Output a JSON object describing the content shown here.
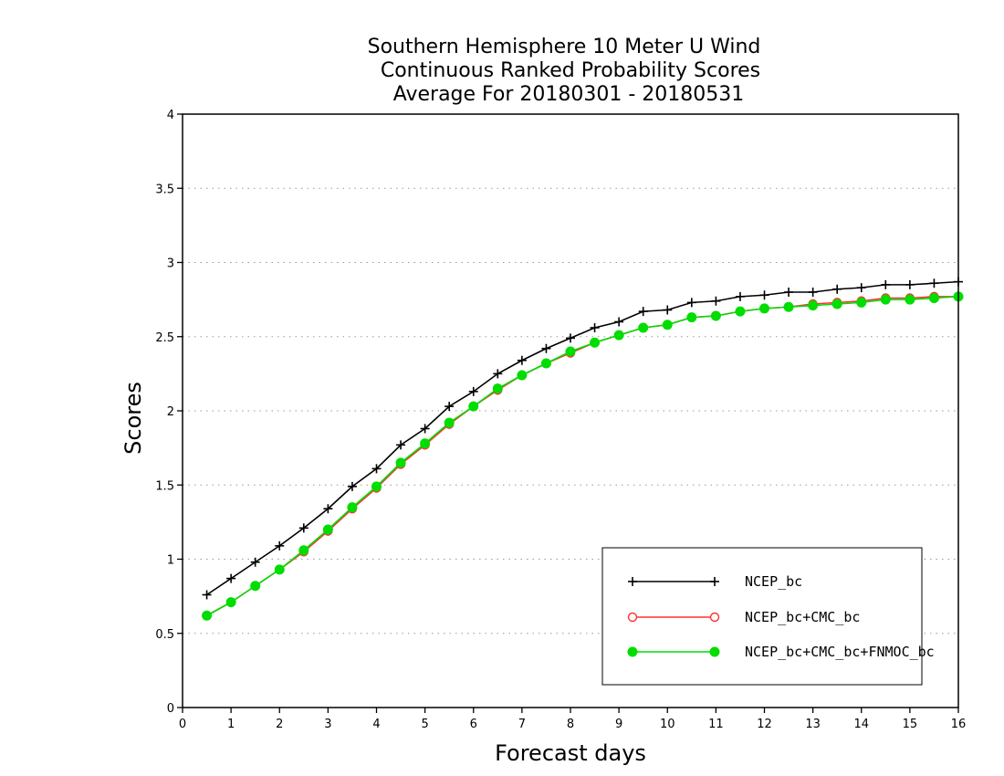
{
  "chart_data": {
    "type": "line",
    "title_lines": [
      "Southern Hemisphere 10 Meter U Wind",
      "Continuous Ranked Probability Scores",
      "Average For 20180301 - 20180531"
    ],
    "xlabel": "Forecast days",
    "ylabel": "Scores",
    "xlim": [
      0,
      16
    ],
    "ylim": [
      0,
      4
    ],
    "x_ticks": [
      "0",
      "1",
      "2",
      "3",
      "4",
      "5",
      "6",
      "7",
      "8",
      "9",
      "10",
      "11",
      "12",
      "13",
      "14",
      "15",
      "16"
    ],
    "y_ticks": [
      "0",
      "0.5",
      "1",
      "1.5",
      "2",
      "2.5",
      "3",
      "3.5",
      "4"
    ],
    "grid": "horizontal dotted",
    "legend_position": "bottom-right",
    "x": [
      0.5,
      1,
      1.5,
      2,
      2.5,
      3,
      3.5,
      4,
      4.5,
      5,
      5.5,
      6,
      6.5,
      7,
      7.5,
      8,
      8.5,
      9,
      9.5,
      10,
      10.5,
      11,
      11.5,
      12,
      12.5,
      13,
      13.5,
      14,
      14.5,
      15,
      15.5,
      16
    ],
    "series": [
      {
        "name": "NCEP_bc",
        "color": "#000000",
        "marker": "plus",
        "values": [
          0.76,
          0.87,
          0.98,
          1.09,
          1.21,
          1.34,
          1.49,
          1.61,
          1.77,
          1.88,
          2.03,
          2.13,
          2.25,
          2.34,
          2.42,
          2.49,
          2.56,
          2.6,
          2.67,
          2.68,
          2.73,
          2.74,
          2.77,
          2.78,
          2.8,
          2.8,
          2.82,
          2.83,
          2.85,
          2.85,
          2.86,
          2.87
        ]
      },
      {
        "name": "NCEP_bc+CMC_bc",
        "color": "#ff3030",
        "marker": "open-circle",
        "values": [
          0.62,
          0.71,
          0.82,
          0.93,
          1.05,
          1.19,
          1.34,
          1.48,
          1.64,
          1.77,
          1.91,
          2.03,
          2.14,
          2.24,
          2.32,
          2.39,
          2.46,
          2.51,
          2.56,
          2.58,
          2.63,
          2.64,
          2.67,
          2.69,
          2.7,
          2.72,
          2.73,
          2.74,
          2.76,
          2.76,
          2.77,
          2.77
        ]
      },
      {
        "name": "NCEP_bc+CMC_bc+FNMOC_bc",
        "color": "#00dd00",
        "marker": "filled-circle",
        "values": [
          0.62,
          0.71,
          0.82,
          0.93,
          1.06,
          1.2,
          1.35,
          1.49,
          1.65,
          1.78,
          1.92,
          2.03,
          2.15,
          2.24,
          2.32,
          2.4,
          2.46,
          2.51,
          2.56,
          2.58,
          2.63,
          2.64,
          2.67,
          2.69,
          2.7,
          2.71,
          2.72,
          2.73,
          2.75,
          2.75,
          2.76,
          2.77
        ]
      }
    ]
  }
}
